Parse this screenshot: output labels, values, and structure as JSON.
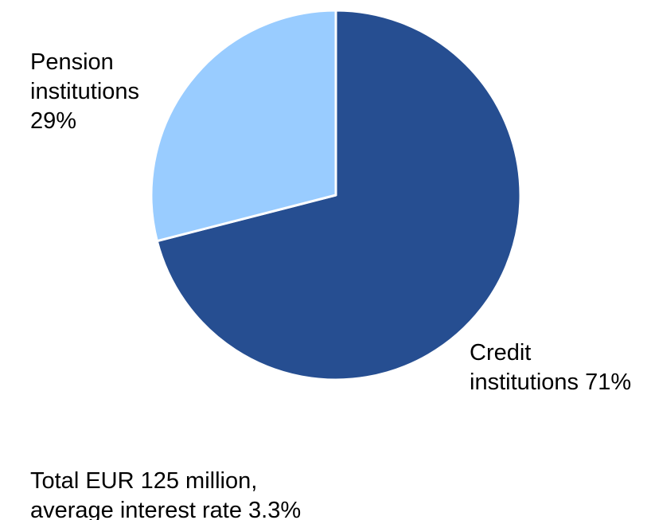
{
  "chart_data": {
    "type": "pie",
    "categories": [
      "Credit institutions",
      "Pension institutions"
    ],
    "values": [
      71,
      29
    ],
    "value_labels": [
      "71%",
      "29%"
    ],
    "colors": [
      "#264e91",
      "#99ccff"
    ],
    "note": [
      "Total EUR 125 million,",
      "average interest rate 3.3%"
    ]
  }
}
